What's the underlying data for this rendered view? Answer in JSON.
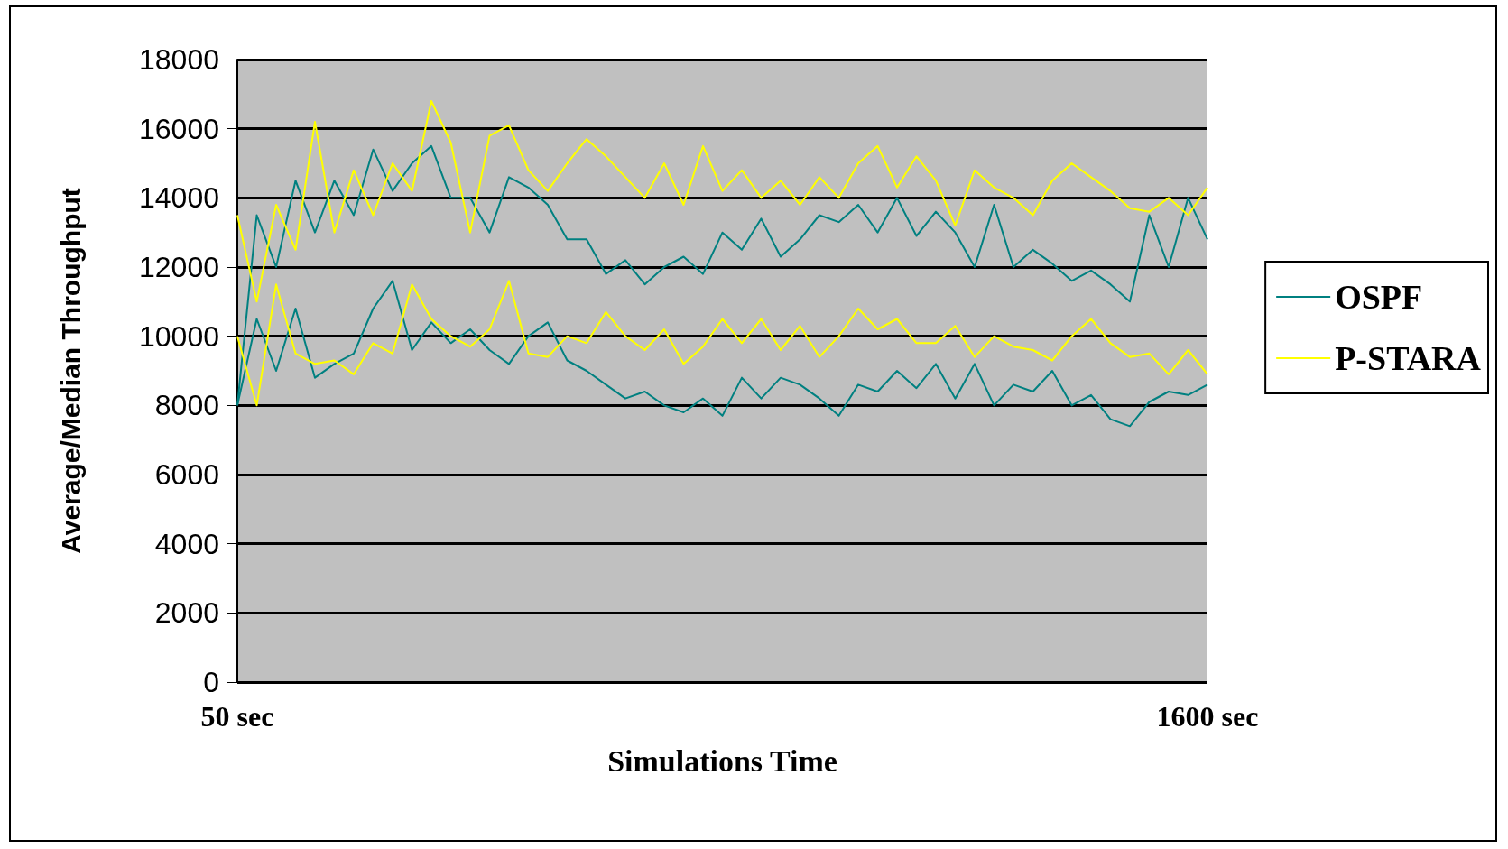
{
  "chart_data": {
    "type": "line",
    "xlabel": "Simulations Time",
    "ylabel": "Average/Median Throughput",
    "x": [
      50,
      81,
      112,
      143,
      174,
      205,
      236,
      267,
      298,
      329,
      360,
      391,
      422,
      453,
      484,
      515,
      546,
      577,
      608,
      639,
      670,
      701,
      732,
      763,
      794,
      825,
      856,
      887,
      918,
      949,
      980,
      1011,
      1042,
      1073,
      1104,
      1135,
      1166,
      1197,
      1228,
      1259,
      1290,
      1321,
      1352,
      1383,
      1414,
      1445,
      1476,
      1507,
      1538,
      1569,
      1600
    ],
    "xlim": [
      50,
      1600
    ],
    "xticks": [
      {
        "value": 50,
        "label": "50 sec"
      },
      {
        "value": 1600,
        "label": "1600 sec"
      }
    ],
    "ylim": [
      0,
      18000
    ],
    "yticks": [
      0,
      2000,
      4000,
      6000,
      8000,
      10000,
      12000,
      14000,
      16000,
      18000
    ],
    "grid": "y",
    "legend": "right",
    "marker": "none",
    "line_style": "solid",
    "series": [
      {
        "name": "OSPF",
        "color": "#008080",
        "values": [
          8000,
          13500,
          12000,
          14500,
          13000,
          14500,
          13500,
          15400,
          14200,
          15000,
          15500,
          14000,
          14000,
          13000,
          14600,
          14300,
          13800,
          12800,
          12800,
          11800,
          12200,
          11500,
          12000,
          12300,
          11800,
          13000,
          12500,
          13400,
          12300,
          12800,
          13500,
          13300,
          13800,
          13000,
          14000,
          12900,
          13600,
          13000,
          12000,
          13800,
          12000,
          12500,
          12100,
          11600,
          11900,
          11500,
          11000,
          13500,
          12000,
          14000,
          12800
        ]
      },
      {
        "color": "#008080",
        "values": [
          8000,
          10500,
          9000,
          10800,
          8800,
          9200,
          9500,
          10800,
          11600,
          9600,
          10400,
          9800,
          10200,
          9600,
          9200,
          10000,
          10400,
          9300,
          9000,
          8600,
          8200,
          8400,
          8000,
          7800,
          8200,
          7700,
          8800,
          8200,
          8800,
          8600,
          8200,
          7700,
          8600,
          8400,
          9000,
          8500,
          9200,
          8200,
          9200,
          8000,
          8600,
          8400,
          9000,
          8000,
          8300,
          7600,
          7400,
          8100,
          8400,
          8300,
          8600
        ]
      },
      {
        "name": "P-STARA",
        "color": "#ffff00",
        "values": [
          13500,
          11000,
          13800,
          12500,
          16200,
          13000,
          14800,
          13500,
          15000,
          14200,
          16800,
          15600,
          13000,
          15800,
          16100,
          14800,
          14200,
          15000,
          15700,
          15200,
          14600,
          14000,
          15000,
          13800,
          15500,
          14200,
          14800,
          14000,
          14500,
          13800,
          14600,
          14000,
          15000,
          15500,
          14300,
          15200,
          14500,
          13200,
          14800,
          14300,
          14000,
          13500,
          14500,
          15000,
          14600,
          14200,
          13700,
          13600,
          14000,
          13500,
          14300
        ]
      },
      {
        "color": "#ffff00",
        "values": [
          10000,
          8000,
          11500,
          9500,
          9200,
          9300,
          8900,
          9800,
          9500,
          11500,
          10500,
          10000,
          9700,
          10200,
          11600,
          9500,
          9400,
          10000,
          9800,
          10700,
          10000,
          9600,
          10200,
          9200,
          9700,
          10500,
          9800,
          10500,
          9600,
          10300,
          9400,
          10000,
          10800,
          10200,
          10500,
          9800,
          9800,
          10300,
          9400,
          10000,
          9700,
          9600,
          9300,
          10000,
          10500,
          9800,
          9400,
          9500,
          8900,
          9600,
          8900
        ]
      }
    ]
  }
}
